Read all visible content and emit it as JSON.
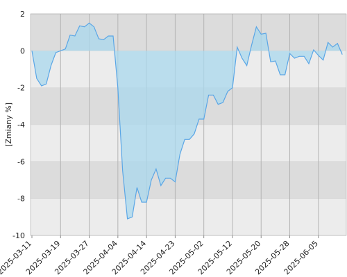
{
  "chart_data": {
    "type": "area",
    "y_label": "[Zmiany %]",
    "categories": [
      "2025-03-11",
      null,
      null,
      null,
      null,
      null,
      "2025-03-19",
      null,
      null,
      null,
      null,
      null,
      "2025-03-27",
      null,
      null,
      null,
      null,
      null,
      "2025-04-04",
      null,
      null,
      null,
      null,
      null,
      "2025-04-14",
      null,
      null,
      null,
      null,
      null,
      "2025-04-23",
      null,
      null,
      null,
      null,
      null,
      "2025-05-02",
      null,
      null,
      null,
      null,
      null,
      "2025-05-12",
      null,
      null,
      null,
      null,
      null,
      "2025-05-20",
      null,
      null,
      null,
      null,
      null,
      "2025-05-28",
      null,
      null,
      null,
      null,
      null,
      "2025-06-05",
      null,
      null,
      null,
      null,
      null
    ],
    "values": [
      0,
      -1.5,
      -1.9,
      -1.8,
      -0.8,
      -0.1,
      0,
      0.1,
      0.85,
      0.8,
      1.35,
      1.3,
      1.5,
      1.3,
      0.65,
      0.6,
      0.8,
      0.8,
      -2,
      -6.5,
      -9.1,
      -9.0,
      -7.4,
      -8.2,
      -8.2,
      -7.0,
      -6.4,
      -7.3,
      -6.9,
      -6.9,
      -7.1,
      -5.6,
      -4.8,
      -4.8,
      -4.5,
      -3.7,
      -3.7,
      -2.4,
      -2.4,
      -2.9,
      -2.8,
      -2.2,
      -2.0,
      0.2,
      -0.4,
      -0.8,
      0.3,
      1.3,
      0.9,
      0.95,
      -0.6,
      -0.55,
      -1.3,
      -1.3,
      -0.15,
      -0.4,
      -0.3,
      -0.3,
      -0.7,
      0.05,
      -0.25,
      -0.5,
      0.45,
      0.2,
      0.4,
      -0.2
    ],
    "color": "#5aa6e6",
    "fill": "#a9d8ee",
    "ylim": [
      -10,
      2
    ],
    "yticks": [
      -10,
      -8,
      -6,
      -4,
      -2,
      0,
      2
    ],
    "grid": true
  }
}
